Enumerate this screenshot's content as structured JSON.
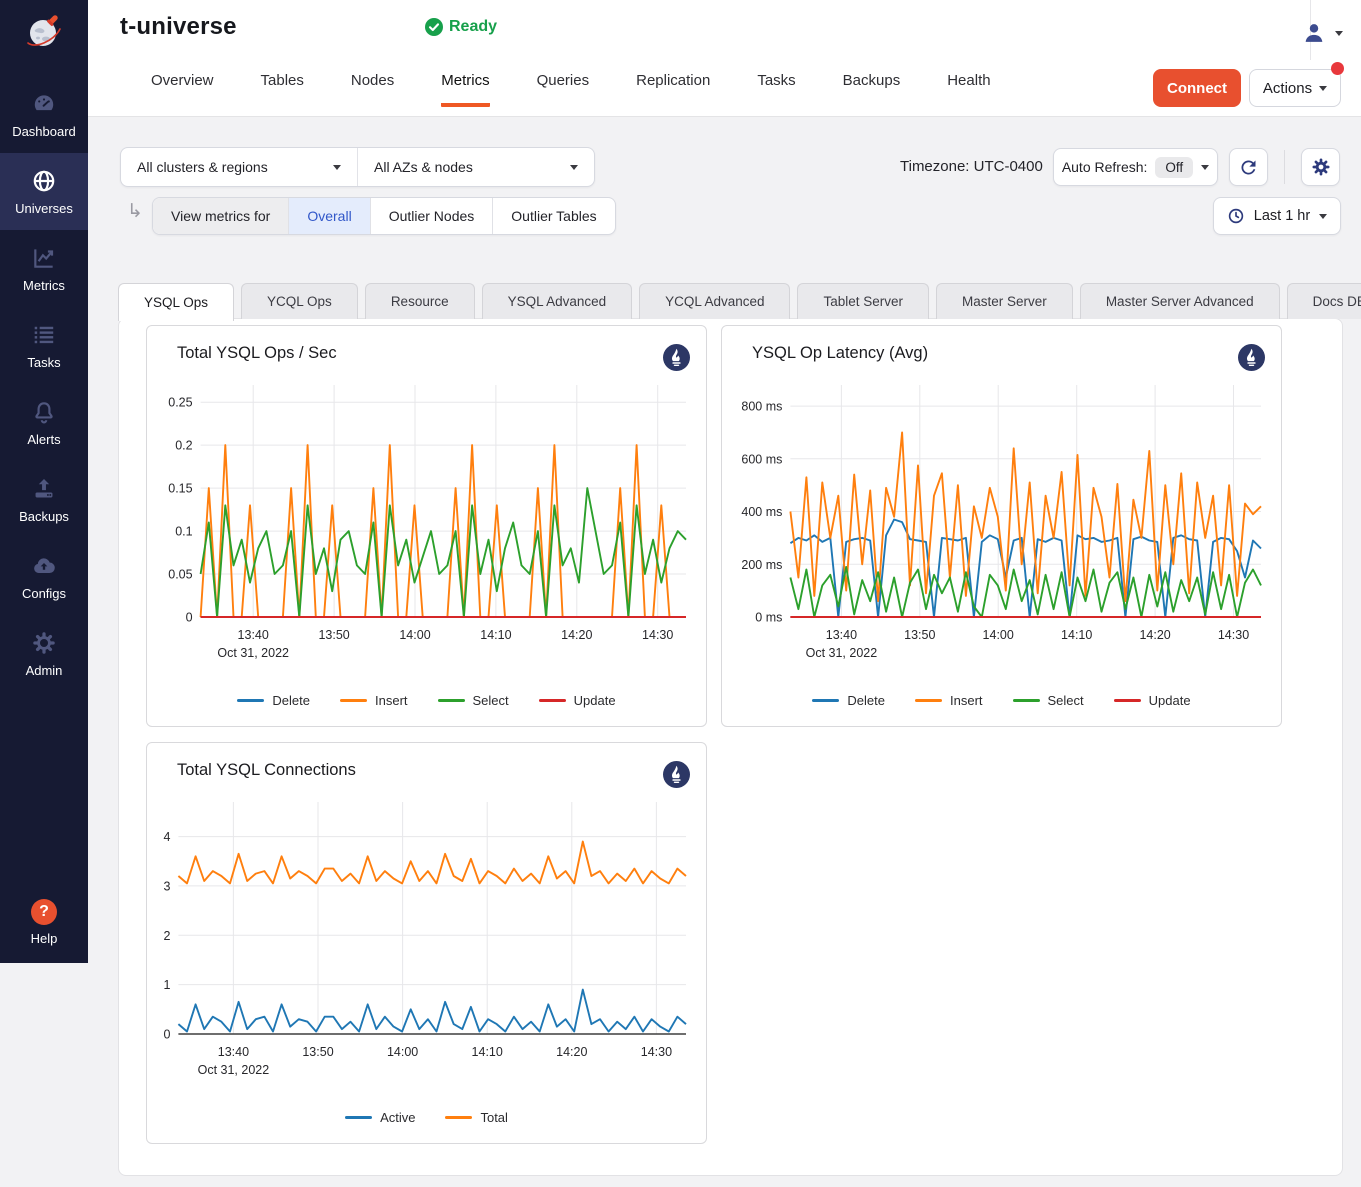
{
  "sidebar": {
    "items": [
      {
        "label": "Dashboard",
        "icon": "gauge-icon",
        "active": false
      },
      {
        "label": "Universes",
        "icon": "globe-icon",
        "active": true
      },
      {
        "label": "Metrics",
        "icon": "chart-icon",
        "active": false
      },
      {
        "label": "Tasks",
        "icon": "list-icon",
        "active": false
      },
      {
        "label": "Alerts",
        "icon": "bell-icon",
        "active": false
      },
      {
        "label": "Backups",
        "icon": "upload-icon",
        "active": false
      },
      {
        "label": "Configs",
        "icon": "cloud-upload-icon",
        "active": false
      },
      {
        "label": "Admin",
        "icon": "gear-icon",
        "active": false
      }
    ],
    "help_label": "Help"
  },
  "header": {
    "title": "t-universe",
    "status": "Ready",
    "nav": [
      "Overview",
      "Tables",
      "Nodes",
      "Metrics",
      "Queries",
      "Replication",
      "Tasks",
      "Backups",
      "Health"
    ],
    "nav_active": "Metrics",
    "connect_label": "Connect",
    "actions_label": "Actions"
  },
  "filters": {
    "cluster_select": "All clusters & regions",
    "az_select": "All AZs & nodes",
    "timezone": "Timezone: UTC-0400",
    "auto_refresh_label": "Auto Refresh:",
    "auto_refresh_value": "Off",
    "view_metrics_label": "View metrics for",
    "view_tabs": [
      "Overall",
      "Outlier Nodes",
      "Outlier Tables"
    ],
    "view_tab_active": "Overall",
    "time_range": "Last 1 hr"
  },
  "metric_tabs": [
    "YSQL Ops",
    "YCQL Ops",
    "Resource",
    "YSQL Advanced",
    "YCQL Advanced",
    "Tablet Server",
    "Master Server",
    "Master Server Advanced",
    "Docs DB"
  ],
  "metric_tab_active": "YSQL Ops",
  "colors": {
    "accent": "#ef5824",
    "connect": "#e8502f",
    "delete": "#1f77b4",
    "insert": "#ff7f0e",
    "select": "#2ca02c",
    "update": "#d62728",
    "active": "#1f77b4",
    "total": "#ff7f0e"
  },
  "chart_data": [
    {
      "type": "line",
      "title": "Total YSQL Ops / Sec",
      "xlabel": "",
      "ylabel": "",
      "x_date_label": "Oct 31, 2022",
      "x_tick_labels": [
        "13:40",
        "13:50",
        "14:00",
        "14:10",
        "14:20",
        "14:30"
      ],
      "x_tick_minutes": [
        6.5,
        16.5,
        26.5,
        36.5,
        46.5,
        56.5
      ],
      "x_span_minutes": 60,
      "ylim": [
        0,
        0.27
      ],
      "yticks": [
        [
          0.25,
          "0.25"
        ],
        [
          0.2,
          "0.2"
        ],
        [
          0.15,
          "0.15"
        ],
        [
          0.1,
          "0.1"
        ],
        [
          0.05,
          "0.05"
        ],
        [
          0,
          "0"
        ]
      ],
      "grid": true,
      "legend_position": "bottom",
      "series": [
        {
          "name": "Delete",
          "color": "#1f77b4",
          "flat": 0,
          "count": 60
        },
        {
          "name": "Insert",
          "color": "#ff7f0e",
          "values": [
            0,
            0.15,
            0,
            0.2,
            0,
            0,
            0.13,
            0,
            0,
            0,
            0,
            0.15,
            0,
            0.2,
            0,
            0,
            0.13,
            0,
            0,
            0,
            0,
            0.15,
            0,
            0.2,
            0,
            0,
            0.13,
            0,
            0,
            0,
            0,
            0.15,
            0,
            0.2,
            0,
            0,
            0.13,
            0,
            0,
            0,
            0,
            0.15,
            0,
            0.2,
            0,
            0,
            0,
            0,
            0,
            0,
            0,
            0.15,
            0,
            0.2,
            0,
            0,
            0.13,
            0,
            0,
            0
          ]
        },
        {
          "name": "Select",
          "color": "#2ca02c",
          "values": [
            0.05,
            0.11,
            0,
            0.13,
            0.06,
            0.09,
            0.04,
            0.08,
            0.1,
            0.05,
            0.06,
            0.1,
            0,
            0.13,
            0.05,
            0.08,
            0.03,
            0.09,
            0.1,
            0.06,
            0.05,
            0.11,
            0,
            0.13,
            0.06,
            0.09,
            0.04,
            0.07,
            0.1,
            0.05,
            0.06,
            0.1,
            0,
            0.13,
            0.05,
            0.09,
            0.03,
            0.08,
            0.11,
            0.06,
            0.05,
            0.1,
            0,
            0.13,
            0.06,
            0.08,
            0.04,
            0.15,
            0.1,
            0.05,
            0.06,
            0.11,
            0,
            0.13,
            0.05,
            0.09,
            0.04,
            0.08,
            0.1,
            0.09
          ]
        },
        {
          "name": "Update",
          "color": "#d62728",
          "flat": 0,
          "count": 60
        }
      ]
    },
    {
      "type": "line",
      "title": "YSQL Op Latency (Avg)",
      "xlabel": "",
      "ylabel": "ms",
      "x_date_label": "Oct 31, 2022",
      "x_tick_labels": [
        "13:40",
        "13:50",
        "14:00",
        "14:10",
        "14:20",
        "14:30"
      ],
      "x_tick_minutes": [
        6.5,
        16.5,
        26.5,
        36.5,
        46.5,
        56.5
      ],
      "x_span_minutes": 60,
      "ylim": [
        0,
        880
      ],
      "yticks": [
        [
          800,
          "800 ms"
        ],
        [
          600,
          "600 ms"
        ],
        [
          400,
          "400 ms"
        ],
        [
          200,
          "200 ms"
        ],
        [
          0,
          "0 ms"
        ]
      ],
      "grid": true,
      "legend_position": "bottom",
      "series": [
        {
          "name": "Delete",
          "color": "#1f77b4",
          "values": [
            280,
            300,
            290,
            310,
            285,
            300,
            0,
            285,
            295,
            300,
            290,
            0,
            310,
            370,
            360,
            295,
            290,
            285,
            0,
            300,
            295,
            290,
            300,
            0,
            285,
            310,
            295,
            150,
            290,
            300,
            0,
            295,
            285,
            300,
            290,
            0,
            310,
            295,
            300,
            285,
            290,
            300,
            0,
            295,
            305,
            290,
            285,
            0,
            300,
            310,
            295,
            290,
            0,
            285,
            300,
            295,
            250,
            150,
            290,
            260
          ]
        },
        {
          "name": "Insert",
          "color": "#ff7f0e",
          "values": [
            400,
            150,
            530,
            80,
            510,
            300,
            460,
            100,
            540,
            200,
            480,
            60,
            490,
            380,
            700,
            120,
            575,
            90,
            460,
            545,
            150,
            500,
            80,
            420,
            300,
            490,
            380,
            100,
            640,
            200,
            510,
            90,
            460,
            300,
            550,
            120,
            615,
            80,
            490,
            380,
            150,
            505,
            60,
            445,
            300,
            630,
            100,
            500,
            200,
            545,
            90,
            510,
            300,
            460,
            120,
            500,
            80,
            430,
            390,
            420
          ]
        },
        {
          "name": "Select",
          "color": "#2ca02c",
          "values": [
            150,
            30,
            180,
            0,
            120,
            160,
            40,
            190,
            10,
            140,
            60,
            170,
            20,
            150,
            0,
            130,
            180,
            30,
            160,
            90,
            150,
            20,
            170,
            40,
            0,
            160,
            120,
            30,
            180,
            60,
            140,
            10,
            160,
            30,
            170,
            0,
            150,
            60,
            180,
            20,
            130,
            170,
            30,
            150,
            0,
            160,
            40,
            170,
            20,
            140,
            60,
            150,
            10,
            170,
            30,
            160,
            0,
            130,
            180,
            120
          ]
        },
        {
          "name": "Update",
          "color": "#d62728",
          "flat": 0,
          "count": 60
        }
      ]
    },
    {
      "type": "line",
      "title": "Total YSQL Connections",
      "xlabel": "",
      "ylabel": "",
      "x_date_label": "Oct 31, 2022",
      "x_tick_labels": [
        "13:40",
        "13:50",
        "14:00",
        "14:10",
        "14:20",
        "14:30"
      ],
      "x_tick_minutes": [
        6.5,
        16.5,
        26.5,
        36.5,
        46.5,
        56.5
      ],
      "x_span_minutes": 60,
      "ylim": [
        0,
        4.7
      ],
      "yticks": [
        [
          4,
          "4"
        ],
        [
          3,
          "3"
        ],
        [
          2,
          "2"
        ],
        [
          1,
          "1"
        ],
        [
          0,
          "0"
        ]
      ],
      "grid": true,
      "legend_position": "bottom",
      "series": [
        {
          "name": "Active",
          "color": "#1f77b4",
          "values": [
            0.2,
            0.05,
            0.6,
            0.1,
            0.35,
            0.25,
            0.05,
            0.65,
            0.1,
            0.3,
            0.35,
            0.05,
            0.6,
            0.15,
            0.3,
            0.25,
            0.05,
            0.35,
            0.35,
            0.1,
            0.25,
            0.05,
            0.6,
            0.1,
            0.35,
            0.15,
            0.05,
            0.5,
            0.1,
            0.3,
            0.05,
            0.65,
            0.2,
            0.1,
            0.55,
            0.05,
            0.3,
            0.2,
            0.05,
            0.35,
            0.1,
            0.25,
            0.05,
            0.6,
            0.15,
            0.3,
            0.05,
            0.9,
            0.2,
            0.3,
            0.05,
            0.25,
            0.1,
            0.35,
            0.05,
            0.3,
            0.15,
            0.05,
            0.35,
            0.2
          ]
        },
        {
          "name": "Total",
          "color": "#ff7f0e",
          "values": [
            3.2,
            3.05,
            3.6,
            3.1,
            3.3,
            3.2,
            3.05,
            3.65,
            3.1,
            3.25,
            3.3,
            3.05,
            3.6,
            3.15,
            3.3,
            3.2,
            3.05,
            3.35,
            3.35,
            3.1,
            3.25,
            3.05,
            3.6,
            3.1,
            3.3,
            3.15,
            3.05,
            3.5,
            3.1,
            3.3,
            3.05,
            3.65,
            3.2,
            3.1,
            3.55,
            3.05,
            3.3,
            3.2,
            3.05,
            3.35,
            3.1,
            3.25,
            3.05,
            3.6,
            3.15,
            3.3,
            3.05,
            3.9,
            3.2,
            3.3,
            3.05,
            3.25,
            3.1,
            3.35,
            3.05,
            3.3,
            3.15,
            3.05,
            3.35,
            3.2
          ]
        }
      ]
    }
  ]
}
